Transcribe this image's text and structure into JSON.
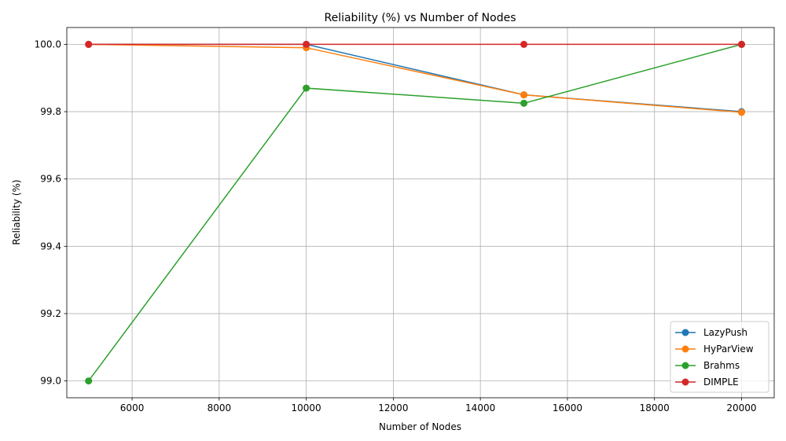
{
  "chart_data": {
    "type": "line",
    "title": "Reliability (%) vs Number of Nodes",
    "xlabel": "Number of Nodes",
    "ylabel": "Reliability (%)",
    "x": [
      5000,
      10000,
      15000,
      20000
    ],
    "xlim": [
      4500,
      20750
    ],
    "ylim": [
      98.95,
      100.05
    ],
    "xticks": [
      6000,
      8000,
      10000,
      12000,
      14000,
      16000,
      18000,
      20000
    ],
    "yticks": [
      99.0,
      99.2,
      99.4,
      99.6,
      99.8,
      100.0
    ],
    "xtick_labels": [
      "6000",
      "8000",
      "10000",
      "12000",
      "14000",
      "16000",
      "18000",
      "20000"
    ],
    "ytick_labels": [
      "99.0",
      "99.2",
      "99.4",
      "99.6",
      "99.8",
      "100.0"
    ],
    "grid": true,
    "legend_position": "lower-right",
    "series": [
      {
        "name": "LazyPush",
        "color": "#1f77b4",
        "values": [
          100.0,
          100.0,
          99.85,
          99.8
        ]
      },
      {
        "name": "HyParView",
        "color": "#ff7f0e",
        "values": [
          100.0,
          99.99,
          99.85,
          99.798
        ]
      },
      {
        "name": "Brahms",
        "color": "#2ca02c",
        "values": [
          99.0,
          99.87,
          99.825,
          100.0
        ]
      },
      {
        "name": "DIMPLE",
        "color": "#d62728",
        "values": [
          100.0,
          100.0,
          100.0,
          100.0
        ]
      }
    ]
  }
}
